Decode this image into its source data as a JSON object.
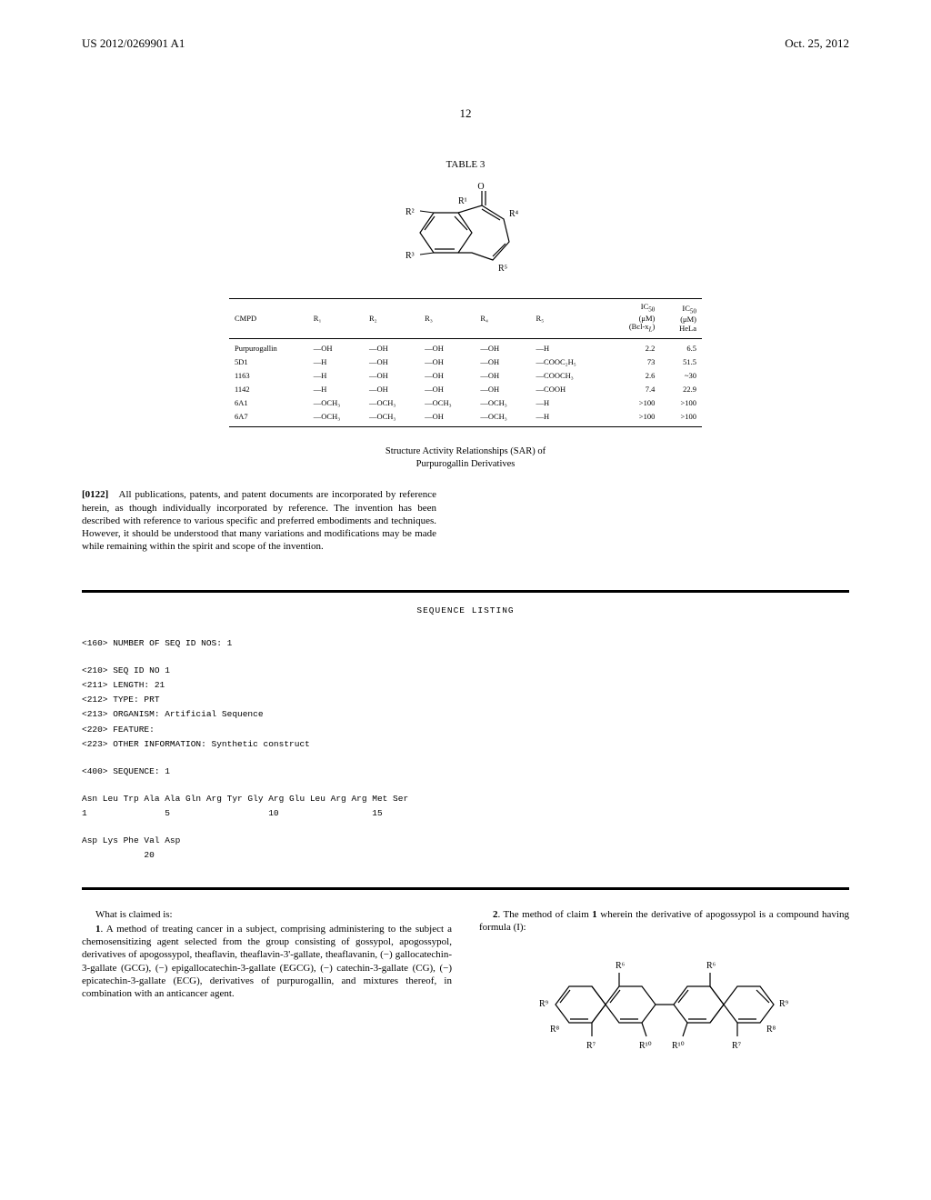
{
  "header": {
    "doc_id": "US 2012/0269901 A1",
    "date": "Oct. 25, 2012"
  },
  "page_number": "12",
  "table": {
    "title": "TABLE 3",
    "molecule_labels": {
      "R1": "R¹",
      "R2": "R²",
      "R3": "R³",
      "R4": "R⁴",
      "R5": "R⁵",
      "O": "O"
    },
    "columns": [
      "CMPD",
      "R₁",
      "R₂",
      "R₃",
      "R₄",
      "R₅",
      "IC₅₀\n(μM)\n(Bcl-x_L)",
      "IC₅₀\n(μM)\nHeLa"
    ],
    "rows": [
      [
        "Purpurogallin",
        "—OH",
        "—OH",
        "—OH",
        "—OH",
        "—H",
        "2.2",
        "6.5"
      ],
      [
        "5D1",
        "—H",
        "—OH",
        "—OH",
        "—OH",
        "—COOC₂H₅",
        "73",
        "51.5"
      ],
      [
        "1163",
        "—H",
        "—OH",
        "—OH",
        "—OH",
        "—COOCH₃",
        "2.6",
        "~30"
      ],
      [
        "1142",
        "—H",
        "—OH",
        "—OH",
        "—OH",
        "—COOH",
        "7.4",
        "22.9"
      ],
      [
        "6A1",
        "—OCH₃",
        "—OCH₃",
        "—OCH₃",
        "—OCH₃",
        "—H",
        ">100",
        ">100"
      ],
      [
        "6A7",
        "—OCH₃",
        "—OCH₃",
        "—OH",
        "—OCH₃",
        "—H",
        ">100",
        ">100"
      ]
    ]
  },
  "sar_caption": "Structure Activity Relationships (SAR) of\nPurpurogallin Derivatives",
  "paragraph": {
    "num": "[0122]",
    "text": "All publications, patents, and patent documents are incorporated by reference herein, as though individually incorporated by reference. The invention has been described with reference to various specific and preferred embodiments and techniques. However, it should be understood that many variations and modifications may be made while remaining within the spirit and scope of the invention."
  },
  "sequence": {
    "title": "SEQUENCE LISTING",
    "tag160": "<160> NUMBER OF SEQ ID NOS: 1",
    "tag210": "<210> SEQ ID NO 1",
    "tag211": "<211> LENGTH: 21",
    "tag212": "<212> TYPE: PRT",
    "tag213": "<213> ORGANISM: Artificial Sequence",
    "tag220": "<220> FEATURE:",
    "tag223": "<223> OTHER INFORMATION: Synthetic construct",
    "tag400": "<400> SEQUENCE: 1",
    "seqrow1": "Asn Leu Trp Ala Ala Gln Arg Tyr Gly Arg Glu Leu Arg Arg Met Ser",
    "seqnum1": "1               5                   10                  15",
    "seqrow2": "Asp Lys Phe Val Asp",
    "seqnum2": "            20"
  },
  "claims": {
    "heading": "What is claimed is:",
    "claim1_num": "1",
    "claim1_text": ". A method of treating cancer in a subject, comprising administering to the subject a chemosensitizing agent selected from the group consisting of gossypol, apogossypol, derivatives of apogossypol, theaflavin, theaflavin-3'-gallate, theaflavanin, (−) gallocatechin-3-gallate (GCG), (−) epigallocatechin-3-gallate (EGCG), (−) catechin-3-gallate (CG), (−) epicatechin-3-gallate (ECG), derivatives of purpurogallin, and mixtures thereof, in combination with an anticancer agent.",
    "claim2_num": "2",
    "claim2_text": ". The method of claim ",
    "claim2_ref": "1",
    "claim2_rest": " wherein the derivative of apogossypol is a compound having formula (I):"
  },
  "molecule2_labels": {
    "R6": "R⁶",
    "R7": "R⁷",
    "R8": "R⁸",
    "R9": "R⁹",
    "R10": "R¹⁰"
  }
}
